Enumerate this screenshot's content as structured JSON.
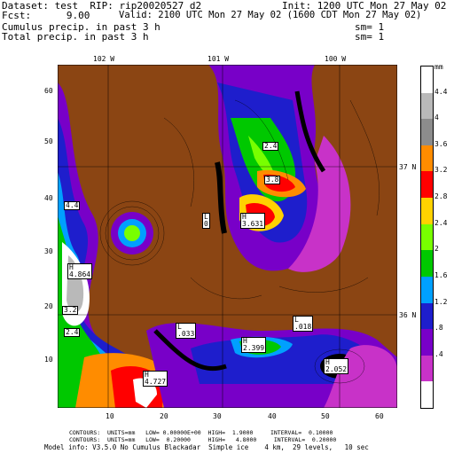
{
  "header": {
    "dataset_line": "Dataset: test  RIP: rip20020527 d2",
    "init_line": "Init: 1200 UTC Mon 27 May 02",
    "fcst_line": "Fcst:      9.00",
    "valid_line": "Valid: 2100 UTC Mon 27 May 02 (1600 CDT Mon 27 May 02)",
    "field1": "Cumulus precip. in past 3 h",
    "field2": "Total precip. in past 3 h",
    "sm1": "sm= 1",
    "sm2": "sm= 1"
  },
  "top_lon_labels": [
    "102 W",
    "101 W",
    "100 W"
  ],
  "right_lat_labels": [
    "37 N",
    "36 N"
  ],
  "y_ticks": [
    "60",
    "50",
    "40",
    "30",
    "20",
    "10"
  ],
  "x_ticks": [
    "10",
    "20",
    "30",
    "40",
    "50",
    "60"
  ],
  "legend": {
    "unit": "mm",
    "labels": [
      "4.4",
      "4",
      "3.6",
      "3.2",
      "2.8",
      "2.4",
      "2",
      "1.6",
      "1.2",
      ".8",
      ".4"
    ],
    "colors": [
      "#ffffff",
      "#b9b9b9",
      "#8c8c8c",
      "#ff8c00",
      "#ff0000",
      "#ffd200",
      "#78ff00",
      "#00c800",
      "#00a0ff",
      "#1e1ecc",
      "#7800c8",
      "#c832c8",
      "#ffffff"
    ]
  },
  "map_colors": {
    "dry": "#8b4513",
    "contour": "#000000"
  },
  "annotations": [
    {
      "text": "H\n4.864"
    },
    {
      "text": "H\n3.631"
    },
    {
      "text": "H\n2.399"
    },
    {
      "text": "H\n4.727"
    },
    {
      "text": "H\n2.052"
    },
    {
      "text": "L\n.033"
    },
    {
      "text": "L\n.018"
    },
    {
      "text": "L\n0"
    },
    {
      "text": "3.8"
    },
    {
      "text": "2.4"
    },
    {
      "text": "3.2"
    },
    {
      "text": "4.4"
    },
    {
      "text": "2.4"
    }
  ],
  "footer": {
    "line1": "CONTOURS:  UNITS=mm   LOW= 0.00000E+00  HIGH=  1.9000     INTERVAL=  0.10000",
    "line2": "CONTOURS:  UNITS=mm   LOW=  0.20000     HIGH=   4.8000     INTERVAL=  0.20000",
    "line3": "Model info: V3.5.0 No Cumulus Blackadar  Simple ice    4 km,  29 levels,   10 sec"
  }
}
